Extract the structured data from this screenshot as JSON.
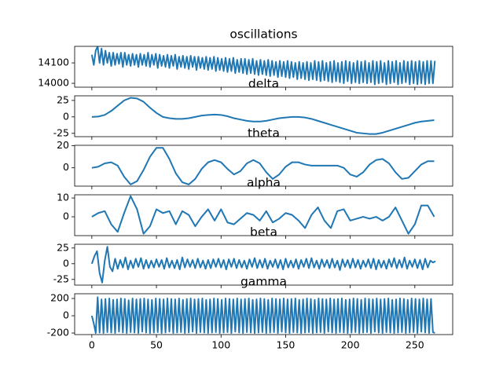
{
  "chart_data": [
    {
      "type": "line",
      "title": "oscillations",
      "color": "#1f77b4",
      "xlim": [
        -13.3,
        279.3
      ],
      "xticks": [
        0,
        50,
        100,
        150,
        200,
        250
      ],
      "ylim": [
        13981,
        14181
      ],
      "yticks": [
        14000,
        14100
      ],
      "x": [
        0,
        1.5,
        3,
        4.5,
        6,
        7.5,
        9,
        10.5,
        12,
        13.5,
        15,
        16.5,
        18,
        19.5,
        21,
        22.5,
        24,
        25.5,
        27,
        28.5,
        30,
        31.5,
        33,
        34.5,
        36,
        37.5,
        39,
        40.5,
        42,
        43.5,
        45,
        46.5,
        48,
        49.5,
        51,
        52.5,
        54,
        55.5,
        57,
        58.5,
        60,
        61.5,
        63,
        64.5,
        66,
        67.5,
        69,
        70.5,
        72,
        73.5,
        75,
        76.5,
        78,
        79.5,
        81,
        82.5,
        84,
        85.5,
        87,
        88.5,
        90,
        91.5,
        93,
        94.5,
        96,
        97.5,
        99,
        100.5,
        102,
        103.5,
        105,
        106.5,
        108,
        109.5,
        111,
        112.5,
        114,
        115.5,
        117,
        118.5,
        120,
        121.5,
        123,
        124.5,
        126,
        127.5,
        129,
        130.5,
        132,
        133.5,
        135,
        136.5,
        138,
        139.5,
        141,
        142.5,
        144,
        145.5,
        147,
        148.5,
        150,
        151.5,
        153,
        154.5,
        156,
        157.5,
        159,
        160.5,
        162,
        163.5,
        165,
        166.5,
        168,
        169.5,
        171,
        172.5,
        174,
        175.5,
        177,
        178.5,
        180,
        181.5,
        183,
        184.5,
        186,
        187.5,
        189,
        190.5,
        192,
        193.5,
        195,
        196.5,
        198,
        199.5,
        201,
        202.5,
        204,
        205.5,
        207,
        208.5,
        210,
        211.5,
        213,
        214.5,
        216,
        217.5,
        219,
        220.5,
        222,
        223.5,
        225,
        226.5,
        228,
        229.5,
        231,
        232.5,
        234,
        235.5,
        237,
        238.5,
        240,
        241.5,
        243,
        244.5,
        246,
        247.5,
        249,
        250.5,
        252,
        253.5,
        255,
        256.5,
        258,
        259.5,
        261,
        262.5,
        264,
        265.5
      ],
      "values": [
        14140,
        14090,
        14160,
        14180,
        14100,
        14170,
        14090,
        14160,
        14100,
        14150,
        14085,
        14150,
        14090,
        14145,
        14095,
        14150,
        14080,
        14150,
        14090,
        14140,
        14085,
        14145,
        14090,
        14140,
        14080,
        14145,
        14090,
        14140,
        14085,
        14150,
        14080,
        14140,
        14090,
        14145,
        14075,
        14140,
        14085,
        14135,
        14080,
        14140,
        14075,
        14135,
        14085,
        14140,
        14070,
        14130,
        14080,
        14135,
        14075,
        14130,
        14070,
        14135,
        14080,
        14130,
        14065,
        14130,
        14075,
        14125,
        14070,
        14130,
        14065,
        14125,
        14070,
        14130,
        14060,
        14125,
        14065,
        14120,
        14060,
        14125,
        14055,
        14120,
        14060,
        14125,
        14050,
        14115,
        14055,
        14120,
        14050,
        14120,
        14045,
        14115,
        14050,
        14120,
        14045,
        14110,
        14040,
        14115,
        14045,
        14110,
        14040,
        14115,
        14035,
        14110,
        14040,
        14105,
        14030,
        14110,
        14035,
        14105,
        14030,
        14110,
        14025,
        14105,
        14030,
        14100,
        14020,
        14105,
        14025,
        14100,
        14020,
        14105,
        14015,
        14100,
        14020,
        14110,
        14015,
        14105,
        14010,
        14110,
        14015,
        14100,
        14010,
        14105,
        14005,
        14110,
        14010,
        14100,
        14005,
        14105,
        14000,
        14110,
        14010,
        14105,
        14000,
        14100,
        14005,
        14110,
        14000,
        14105,
        14005,
        14110,
        14000,
        14100,
        14005,
        14110,
        13995,
        14105,
        14000,
        14110,
        14005,
        14100,
        13995,
        14110,
        14000,
        14105,
        14005,
        14110,
        13995,
        14100,
        14000,
        14110,
        14005,
        14105,
        13995,
        14110,
        14000,
        14105,
        13995,
        14110,
        14000,
        14105,
        13995,
        14110,
        14000,
        14110,
        14000,
        14110
      ]
    },
    {
      "type": "line",
      "title": "delta",
      "color": "#1f77b4",
      "xlim": [
        -13.3,
        279.3
      ],
      "xticks": [
        0,
        50,
        100,
        150,
        200,
        250
      ],
      "ylim": [
        -30,
        32
      ],
      "yticks": [
        -25,
        0,
        25
      ],
      "x": [
        0,
        5,
        10,
        15,
        20,
        25,
        30,
        35,
        40,
        45,
        50,
        55,
        60,
        65,
        70,
        75,
        80,
        85,
        90,
        95,
        100,
        105,
        110,
        115,
        120,
        125,
        130,
        135,
        140,
        145,
        150,
        155,
        160,
        165,
        170,
        175,
        180,
        185,
        190,
        195,
        200,
        205,
        210,
        215,
        220,
        225,
        230,
        235,
        240,
        245,
        250,
        255,
        260,
        265
      ],
      "values": [
        0,
        0.5,
        3,
        9,
        17,
        25,
        29,
        28,
        23,
        14,
        6,
        0,
        -2,
        -3,
        -3,
        -2,
        0,
        2,
        3,
        3.5,
        3,
        1,
        -2,
        -4,
        -6,
        -7,
        -7,
        -6,
        -4,
        -2,
        -1,
        0,
        0,
        -1,
        -3,
        -6,
        -9,
        -12,
        -15,
        -18,
        -21,
        -24,
        -25,
        -26,
        -26,
        -24,
        -21,
        -18,
        -15,
        -12,
        -9,
        -7,
        -6,
        -5
      ]
    },
    {
      "type": "line",
      "title": "theta",
      "color": "#1f77b4",
      "xlim": [
        -13.3,
        279.3
      ],
      "xticks": [
        0,
        50,
        100,
        150,
        200,
        250
      ],
      "ylim": [
        -16.5,
        20.3
      ],
      "yticks": [
        0,
        20
      ],
      "x": [
        0,
        5,
        10,
        15,
        20,
        25,
        30,
        35,
        40,
        45,
        50,
        55,
        60,
        65,
        70,
        75,
        80,
        85,
        90,
        95,
        100,
        105,
        110,
        115,
        120,
        125,
        130,
        135,
        140,
        145,
        150,
        155,
        160,
        165,
        170,
        175,
        180,
        185,
        190,
        195,
        200,
        205,
        210,
        215,
        220,
        225,
        230,
        235,
        240,
        245,
        250,
        255,
        260,
        265
      ],
      "values": [
        0,
        1,
        4,
        5,
        2,
        -8,
        -15,
        -12,
        -2,
        10,
        18,
        18,
        8,
        -5,
        -13,
        -15,
        -10,
        -1,
        5,
        7,
        5,
        -1,
        -6,
        -3,
        4,
        7,
        4,
        -4,
        -10,
        -6,
        1,
        5,
        5,
        3,
        2,
        2,
        2,
        2,
        2,
        0,
        -6,
        -8,
        -4,
        3,
        7,
        8,
        4,
        -4,
        -10,
        -9,
        -3,
        3,
        6,
        6
      ]
    },
    {
      "type": "line",
      "title": "alpha",
      "color": "#1f77b4",
      "xlim": [
        -13.3,
        279.3
      ],
      "xticks": [
        0,
        50,
        100,
        150,
        200,
        250
      ],
      "ylim": [
        -10,
        11.7
      ],
      "yticks": [
        0,
        10
      ],
      "x": [
        0,
        5,
        10,
        15,
        20,
        25,
        30,
        35,
        40,
        45,
        50,
        55,
        60,
        65,
        70,
        75,
        80,
        85,
        90,
        95,
        100,
        105,
        110,
        115,
        120,
        125,
        130,
        135,
        140,
        145,
        150,
        155,
        160,
        165,
        170,
        175,
        180,
        185,
        190,
        195,
        200,
        205,
        210,
        215,
        220,
        225,
        230,
        235,
        240,
        245,
        250,
        255,
        260,
        265
      ],
      "values": [
        0,
        2,
        3,
        -4,
        -8,
        2,
        11,
        4,
        -9,
        -5,
        4,
        2,
        3,
        -4,
        3,
        1,
        -5,
        0,
        4,
        -2,
        4,
        -3,
        -4,
        -1,
        2,
        1,
        -2,
        3,
        -3,
        -1,
        2,
        1,
        -2,
        -6,
        1,
        5,
        -2,
        -6,
        3,
        4,
        -2,
        -1,
        0,
        -1,
        0,
        -2,
        0,
        5,
        -2,
        -9,
        -4,
        6,
        6,
        0
      ]
    },
    {
      "type": "line",
      "title": "beta",
      "color": "#1f77b4",
      "xlim": [
        -13.3,
        279.3
      ],
      "xticks": [
        0,
        50,
        100,
        150,
        200,
        250
      ],
      "ylim": [
        -34,
        31
      ],
      "yticks": [
        -25,
        0,
        25
      ],
      "x": [
        0,
        2,
        4,
        6,
        8,
        10,
        12,
        14,
        16,
        18,
        20,
        22,
        24,
        26,
        28,
        30,
        32,
        34,
        36,
        38,
        40,
        42,
        44,
        46,
        48,
        50,
        52,
        54,
        56,
        58,
        60,
        62,
        64,
        66,
        68,
        70,
        72,
        74,
        76,
        78,
        80,
        82,
        84,
        86,
        88,
        90,
        92,
        94,
        96,
        98,
        100,
        102,
        104,
        106,
        108,
        110,
        112,
        114,
        116,
        118,
        120,
        122,
        124,
        126,
        128,
        130,
        132,
        134,
        136,
        138,
        140,
        142,
        144,
        146,
        148,
        150,
        152,
        154,
        156,
        158,
        160,
        162,
        164,
        166,
        168,
        170,
        172,
        174,
        176,
        178,
        180,
        182,
        184,
        186,
        188,
        190,
        192,
        194,
        196,
        198,
        200,
        202,
        204,
        206,
        208,
        210,
        212,
        214,
        216,
        218,
        220,
        222,
        224,
        226,
        228,
        230,
        232,
        234,
        236,
        238,
        240,
        242,
        244,
        246,
        248,
        250,
        252,
        254,
        256,
        258,
        260,
        262,
        264,
        266
      ],
      "values": [
        0,
        12,
        20,
        -15,
        -30,
        5,
        27,
        -5,
        -12,
        8,
        -8,
        6,
        -6,
        10,
        -9,
        5,
        -7,
        8,
        -5,
        9,
        -8,
        6,
        -7,
        5,
        -6,
        7,
        -5,
        6,
        -8,
        9,
        -6,
        5,
        -7,
        6,
        -9,
        10,
        -6,
        7,
        -5,
        6,
        -7,
        8,
        -6,
        5,
        -8,
        6,
        -7,
        7,
        -5,
        8,
        -6,
        6,
        -9,
        7,
        -5,
        8,
        -7,
        6,
        -6,
        5,
        -8,
        7,
        -5,
        9,
        -7,
        6,
        -6,
        8,
        -8,
        5,
        -5,
        7,
        -7,
        6,
        -9,
        8,
        -6,
        5,
        -6,
        7,
        -8,
        6,
        -5,
        8,
        -7,
        9,
        -6,
        5,
        -8,
        7,
        -5,
        6,
        -7,
        8,
        -6,
        5,
        -10,
        7,
        -5,
        6,
        -7,
        8,
        -6,
        6,
        -8,
        5,
        -5,
        7,
        -7,
        8,
        -9,
        6,
        -6,
        5,
        -8,
        7,
        -5,
        9,
        -7,
        6,
        -6,
        10,
        -8,
        5,
        -5,
        7,
        -7,
        6,
        -9,
        8,
        -6,
        5,
        2,
        4
      ]
    },
    {
      "type": "line",
      "title": "gamma",
      "color": "#1f77b4",
      "xlim": [
        -13.3,
        279.3
      ],
      "xticks": [
        0,
        50,
        100,
        150,
        200,
        250
      ],
      "ylim": [
        -218,
        255
      ],
      "yticks": [
        -200,
        0,
        200
      ],
      "x": [
        0,
        1.5,
        3,
        4.5,
        6,
        7.5,
        9,
        10.5,
        12,
        13.5,
        15,
        16.5,
        18,
        19.5,
        21,
        22.5,
        24,
        25.5,
        27,
        28.5,
        30,
        31.5,
        33,
        34.5,
        36,
        37.5,
        39,
        40.5,
        42,
        43.5,
        45,
        46.5,
        48,
        49.5,
        51,
        52.5,
        54,
        55.5,
        57,
        58.5,
        60,
        61.5,
        63,
        64.5,
        66,
        67.5,
        69,
        70.5,
        72,
        73.5,
        75,
        76.5,
        78,
        79.5,
        81,
        82.5,
        84,
        85.5,
        87,
        88.5,
        90,
        91.5,
        93,
        94.5,
        96,
        97.5,
        99,
        100.5,
        102,
        103.5,
        105,
        106.5,
        108,
        109.5,
        111,
        112.5,
        114,
        115.5,
        117,
        118.5,
        120,
        121.5,
        123,
        124.5,
        126,
        127.5,
        129,
        130.5,
        132,
        133.5,
        135,
        136.5,
        138,
        139.5,
        141,
        142.5,
        144,
        145.5,
        147,
        148.5,
        150,
        151.5,
        153,
        154.5,
        156,
        157.5,
        159,
        160.5,
        162,
        163.5,
        165,
        166.5,
        168,
        169.5,
        171,
        172.5,
        174,
        175.5,
        177,
        178.5,
        180,
        181.5,
        183,
        184.5,
        186,
        187.5,
        189,
        190.5,
        192,
        193.5,
        195,
        196.5,
        198,
        199.5,
        201,
        202.5,
        204,
        205.5,
        207,
        208.5,
        210,
        211.5,
        213,
        214.5,
        216,
        217.5,
        219,
        220.5,
        222,
        223.5,
        225,
        226.5,
        228,
        229.5,
        231,
        232.5,
        234,
        235.5,
        237,
        238.5,
        240,
        241.5,
        243,
        244.5,
        246,
        247.5,
        249,
        250.5,
        252,
        253.5,
        255,
        256.5,
        258,
        259.5,
        261,
        262.5,
        264,
        265.5
      ],
      "values": [
        0,
        -90,
        -200,
        215,
        -195,
        190,
        -200,
        195,
        -190,
        200,
        -195,
        185,
        -200,
        190,
        -185,
        200,
        -195,
        195,
        -200,
        180,
        -190,
        200,
        -195,
        190,
        -200,
        195,
        -185,
        200,
        -195,
        190,
        -200,
        185,
        -195,
        200,
        -190,
        195,
        -200,
        190,
        -195,
        200,
        -185,
        195,
        -200,
        190,
        -195,
        200,
        -190,
        185,
        -200,
        195,
        -195,
        200,
        -185,
        190,
        -200,
        195,
        -190,
        200,
        -195,
        185,
        -200,
        190,
        -195,
        200,
        -190,
        195,
        -200,
        185,
        -195,
        200,
        -190,
        195,
        -200,
        190,
        -185,
        200,
        -195,
        190,
        -200,
        195,
        -190,
        200,
        -195,
        185,
        -200,
        190,
        -195,
        200,
        -190,
        195,
        -200,
        185,
        -195,
        200,
        -190,
        195,
        -200,
        190,
        -185,
        200,
        -195,
        190,
        -200,
        195,
        -190,
        200,
        -195,
        185,
        -200,
        190,
        -195,
        200,
        -190,
        195,
        -200,
        185,
        -195,
        200,
        -190,
        195,
        -200,
        190,
        -185,
        200,
        -195,
        190,
        -200,
        195,
        -190,
        200,
        -195,
        185,
        -200,
        190,
        -195,
        200,
        -190,
        195,
        -200,
        185,
        -195,
        200,
        -190,
        195,
        -200,
        190,
        -185,
        200,
        -195,
        190,
        -200,
        195,
        -190,
        200,
        -195,
        185,
        -200,
        190,
        -195,
        200,
        -190,
        195,
        -200,
        185,
        -195,
        200,
        -190,
        195,
        -200,
        190,
        -185,
        200,
        -195,
        190,
        -200,
        195,
        -190,
        -200
      ]
    }
  ]
}
